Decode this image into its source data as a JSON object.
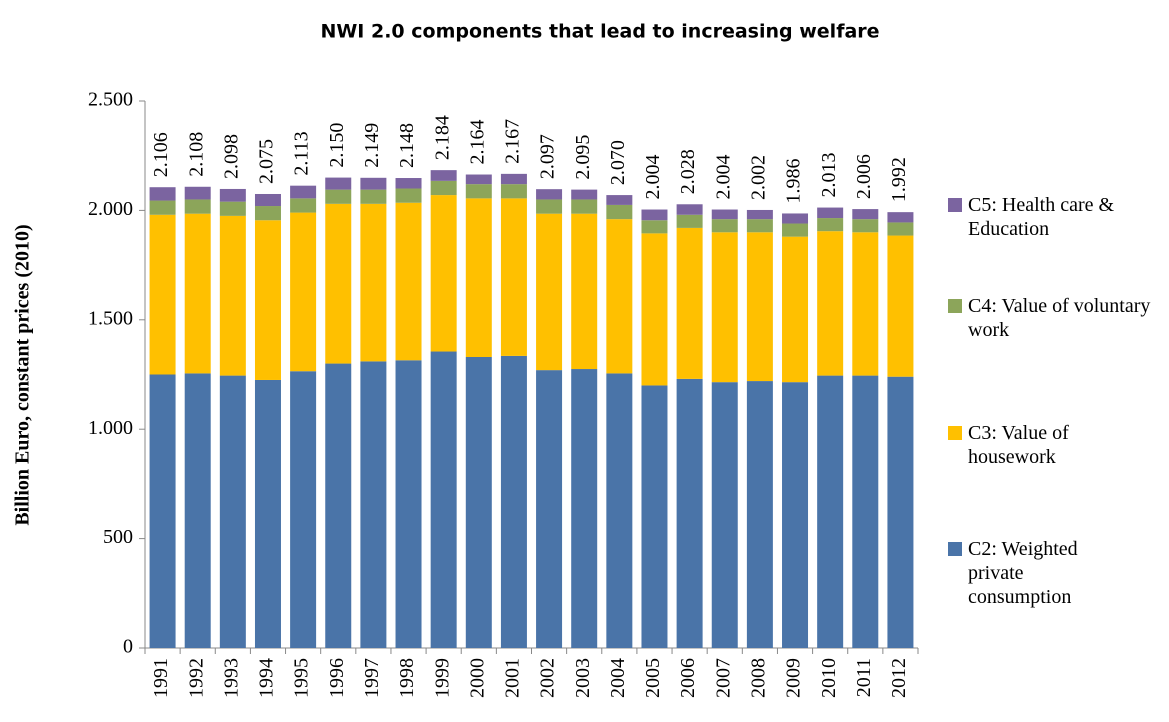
{
  "chart_data": {
    "type": "stacked_bar",
    "title": "NWI 2.0 components that lead to increasing welfare",
    "y_label": "Billion Euro, constant prices (2010)",
    "categories": [
      "1991",
      "1992",
      "1993",
      "1994",
      "1995",
      "1996",
      "1997",
      "1998",
      "1999",
      "2000",
      "2001",
      "2002",
      "2003",
      "2004",
      "2005",
      "2006",
      "2007",
      "2008",
      "2009",
      "2010",
      "2011",
      "2012"
    ],
    "series": [
      {
        "name": "C2: Weighted private consumption",
        "color": "#4a74a8",
        "values": [
          1250,
          1255,
          1245,
          1225,
          1265,
          1300,
          1310,
          1315,
          1355,
          1330,
          1335,
          1270,
          1275,
          1255,
          1200,
          1230,
          1215,
          1220,
          1215,
          1245,
          1245,
          1240
        ]
      },
      {
        "name": "C3: Value of housework",
        "color": "#ffc000",
        "values": [
          730,
          730,
          730,
          730,
          725,
          730,
          720,
          720,
          715,
          725,
          720,
          715,
          710,
          705,
          695,
          690,
          685,
          680,
          665,
          660,
          655,
          645
        ]
      },
      {
        "name": "C4: Value of voluntary work",
        "color": "#8ca55a",
        "values": [
          65,
          65,
          65,
          65,
          65,
          65,
          65,
          65,
          65,
          65,
          65,
          65,
          65,
          65,
          60,
          60,
          60,
          60,
          60,
          60,
          60,
          60
        ]
      },
      {
        "name": "C5: Health care & Education",
        "color": "#7b64a0",
        "values": [
          61,
          58,
          58,
          55,
          58,
          55,
          54,
          48,
          49,
          44,
          47,
          47,
          45,
          45,
          49,
          48,
          44,
          42,
          46,
          48,
          46,
          47
        ]
      }
    ],
    "totals": {
      "values": [
        2106,
        2108,
        2098,
        2075,
        2113,
        2150,
        2149,
        2148,
        2184,
        2164,
        2167,
        2097,
        2095,
        2070,
        2004,
        2028,
        2004,
        2002,
        1986,
        2013,
        2006,
        1992
      ],
      "value_labels": [
        "2.106",
        "2.108",
        "2.098",
        "2.075",
        "2.113",
        "2.150",
        "2.149",
        "2.148",
        "2.184",
        "2.164",
        "2.167",
        "2.097",
        "2.095",
        "2.070",
        "2.004",
        "2.028",
        "2.004",
        "2.002",
        "1.986",
        "2.013",
        "2.006",
        "1.992"
      ]
    },
    "ylim": [
      0,
      2500
    ],
    "yticks": [
      0,
      500,
      {
        "value": 1000,
        "label": "1.000"
      },
      {
        "value": 1500,
        "label": "1.500"
      },
      {
        "value": 2000,
        "label": "2.000"
      },
      {
        "value": 2500,
        "label": "2.500"
      }
    ],
    "grid": false,
    "legend": "right"
  }
}
